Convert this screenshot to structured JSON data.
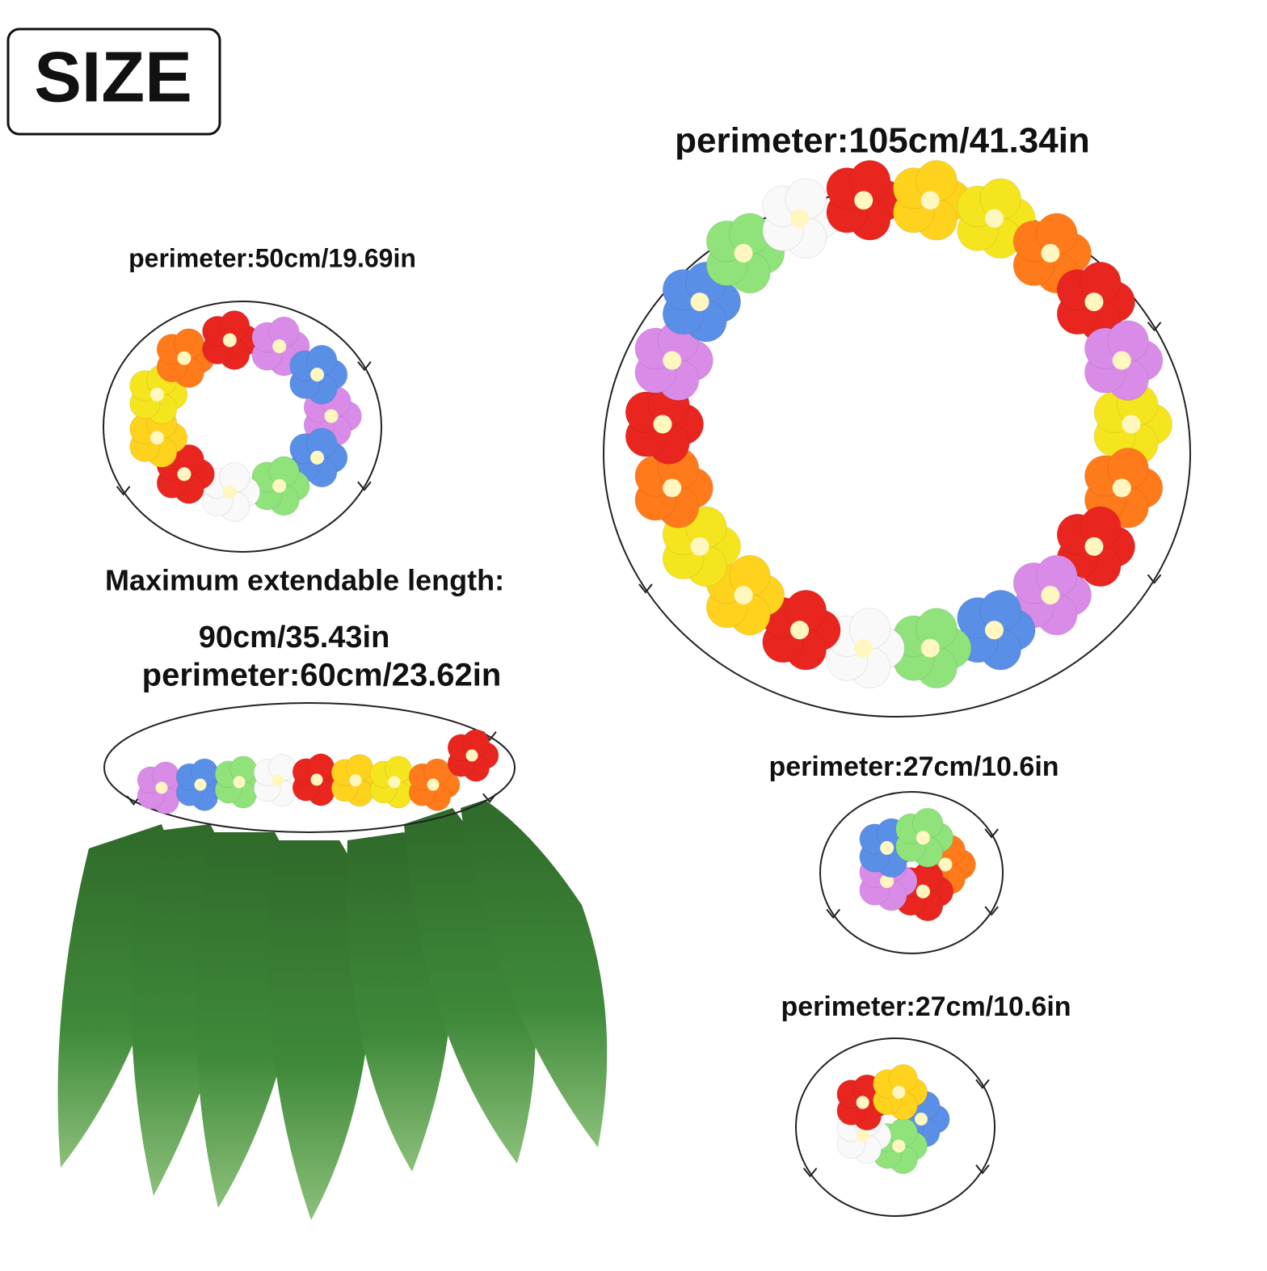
{
  "badge": {
    "title": "SIZE"
  },
  "neck_lei": {
    "label": "perimeter:105cm/41.34in"
  },
  "bracelet": {
    "label": "perimeter:50cm/19.69in"
  },
  "skirt": {
    "heading": "Maximum extendable length:",
    "length": "90cm/35.43in",
    "label": "perimeter:60cm/23.62in"
  },
  "wristband_1": {
    "label": "perimeter:27cm/10.6in"
  },
  "wristband_2": {
    "label": "perimeter:27cm/10.6in"
  }
}
